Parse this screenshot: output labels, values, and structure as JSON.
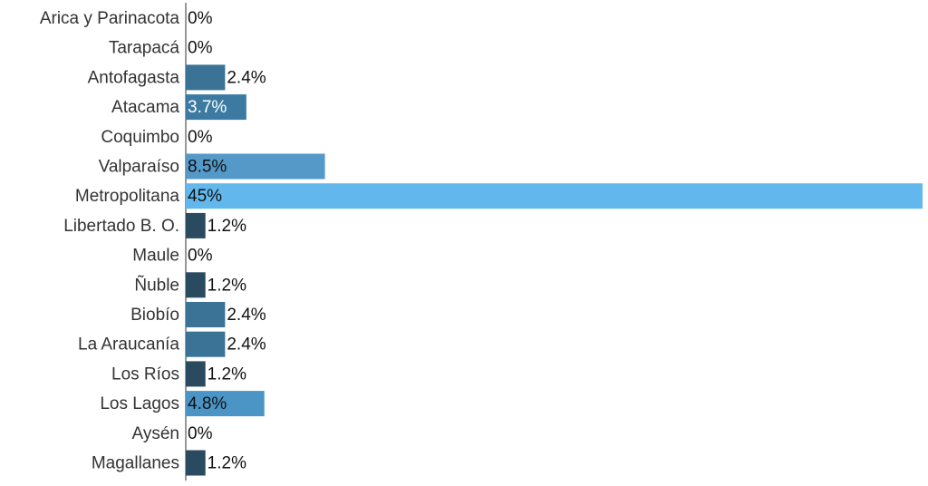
{
  "chart_data": {
    "type": "bar",
    "orientation": "horizontal",
    "categories": [
      "Arica y Parinacota",
      "Tarapacá",
      "Antofagasta",
      "Atacama",
      "Coquimbo",
      "Valparaíso",
      "Metropolitana",
      "Libertado B. O.",
      "Maule",
      "Ñuble",
      "Biobío",
      "La Araucanía",
      "Los Ríos",
      "Los Lagos",
      "Aysén",
      "Magallanes"
    ],
    "values": [
      0,
      0,
      2.4,
      3.7,
      0,
      8.5,
      45,
      1.2,
      0,
      1.2,
      2.4,
      2.4,
      1.2,
      4.8,
      0,
      1.2
    ],
    "value_labels": [
      "0%",
      "0%",
      "2.4%",
      "3.7%",
      "0%",
      "8.5%",
      "45%",
      "1.2%",
      "0%",
      "1.2%",
      "2.4%",
      "2.4%",
      "1.2%",
      "4.8%",
      "0%",
      "1.2%"
    ],
    "colors": [
      "#2a4a60",
      "#2a4a60",
      "#3b7396",
      "#3d7aa1",
      "#2a4a60",
      "#5499c8",
      "#62b8ec",
      "#2a4a60",
      "#2a4a60",
      "#2a4a60",
      "#3b7396",
      "#3b7396",
      "#2a4a60",
      "#4b95c6",
      "#2a4a60",
      "#2a4a60"
    ],
    "xlim": [
      0,
      45
    ]
  }
}
